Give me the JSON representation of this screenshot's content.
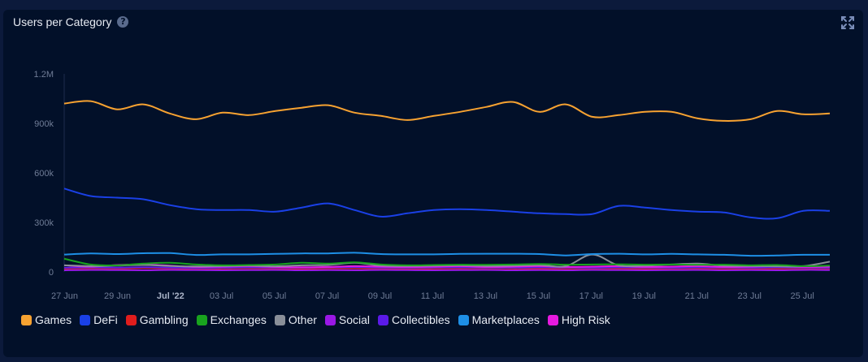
{
  "header": {
    "title": "Users per Category"
  },
  "icons": {
    "help": "question-circle-icon",
    "expand": "expand-icon"
  },
  "chart_data": {
    "type": "line",
    "title": "Users per Category",
    "xlabel": "",
    "ylabel": "",
    "ylim": [
      0,
      1200000
    ],
    "y_ticks": [
      {
        "label": "0",
        "value": 0
      },
      {
        "label": "300k",
        "value": 300000
      },
      {
        "label": "600k",
        "value": 600000
      },
      {
        "label": "900k",
        "value": 900000
      },
      {
        "label": "1.2M",
        "value": 1200000
      }
    ],
    "x_ticks": [
      {
        "label": "27 Jun",
        "index": 0,
        "bold": false
      },
      {
        "label": "29 Jun",
        "index": 2,
        "bold": false
      },
      {
        "label": "Jul '22",
        "index": 4,
        "bold": true
      },
      {
        "label": "03 Jul",
        "index": 6,
        "bold": false
      },
      {
        "label": "05 Jul",
        "index": 8,
        "bold": false
      },
      {
        "label": "07 Jul",
        "index": 10,
        "bold": false
      },
      {
        "label": "09 Jul",
        "index": 12,
        "bold": false
      },
      {
        "label": "11 Jul",
        "index": 14,
        "bold": false
      },
      {
        "label": "13 Jul",
        "index": 16,
        "bold": false
      },
      {
        "label": "15 Jul",
        "index": 18,
        "bold": false
      },
      {
        "label": "17 Jul",
        "index": 20,
        "bold": false
      },
      {
        "label": "19 Jul",
        "index": 22,
        "bold": false
      },
      {
        "label": "21 Jul",
        "index": 24,
        "bold": false
      },
      {
        "label": "23 Jul",
        "index": 26,
        "bold": false
      },
      {
        "label": "25 Jul",
        "index": 28,
        "bold": false
      }
    ],
    "x": [
      "2022-06-27",
      "2022-06-28",
      "2022-06-29",
      "2022-06-30",
      "2022-07-01",
      "2022-07-02",
      "2022-07-03",
      "2022-07-04",
      "2022-07-05",
      "2022-07-06",
      "2022-07-07",
      "2022-07-08",
      "2022-07-09",
      "2022-07-10",
      "2022-07-11",
      "2022-07-12",
      "2022-07-13",
      "2022-07-14",
      "2022-07-15",
      "2022-07-16",
      "2022-07-17",
      "2022-07-18",
      "2022-07-19",
      "2022-07-20",
      "2022-07-21",
      "2022-07-22",
      "2022-07-23",
      "2022-07-24",
      "2022-07-25",
      "2022-07-26"
    ],
    "grid": false,
    "legend_position": "bottom-left",
    "series": [
      {
        "name": "Games",
        "color": "#f7a231",
        "values": [
          1020000,
          1035000,
          985000,
          1015000,
          960000,
          925000,
          965000,
          950000,
          975000,
          995000,
          1010000,
          965000,
          945000,
          920000,
          945000,
          970000,
          1000000,
          1030000,
          970000,
          1015000,
          940000,
          950000,
          970000,
          970000,
          930000,
          915000,
          925000,
          975000,
          955000,
          960000
        ]
      },
      {
        "name": "DeFi",
        "color": "#1a40e6",
        "values": [
          505000,
          460000,
          450000,
          440000,
          405000,
          380000,
          375000,
          375000,
          365000,
          390000,
          415000,
          375000,
          335000,
          355000,
          375000,
          380000,
          375000,
          365000,
          355000,
          350000,
          350000,
          400000,
          390000,
          375000,
          365000,
          360000,
          330000,
          325000,
          370000,
          370000
        ]
      },
      {
        "name": "Gambling",
        "color": "#e01d1d",
        "values": [
          20000,
          22000,
          20000,
          23000,
          21000,
          18000,
          20000,
          22000,
          20000,
          19000,
          21000,
          22000,
          20000,
          18000,
          20000,
          21000,
          22000,
          20000,
          19000,
          20000,
          21000,
          20000,
          19000,
          20000,
          21000,
          20000,
          19000,
          20000,
          21000,
          20000
        ]
      },
      {
        "name": "Exchanges",
        "color": "#19a31e",
        "values": [
          80000,
          45000,
          40000,
          50000,
          55000,
          45000,
          40000,
          42000,
          45000,
          55000,
          50000,
          58000,
          45000,
          40000,
          42000,
          44000,
          43000,
          45000,
          48000,
          44000,
          45000,
          46000,
          44000,
          45000,
          43000,
          44000,
          40000,
          42000,
          35000,
          38000
        ]
      },
      {
        "name": "Other",
        "color": "#8a8f99",
        "values": [
          40000,
          35000,
          38000,
          42000,
          36000,
          33000,
          35000,
          38000,
          34000,
          40000,
          42000,
          55000,
          38000,
          36000,
          38000,
          40000,
          36000,
          38000,
          42000,
          35000,
          105000,
          40000,
          38000,
          45000,
          50000,
          38000,
          36000,
          34000,
          35000,
          62000
        ]
      },
      {
        "name": "Social",
        "color": "#9a18e6",
        "values": [
          10000,
          12000,
          11000,
          10000,
          12000,
          11000,
          10000,
          11000,
          12000,
          10000,
          11000,
          10000,
          12000,
          11000,
          10000,
          11000,
          12000,
          10000,
          11000,
          10000,
          12000,
          11000,
          10000,
          11000,
          12000,
          10000,
          11000,
          10000,
          12000,
          11000
        ]
      },
      {
        "name": "Collectibles",
        "color": "#5b1ae8",
        "values": [
          25000,
          27000,
          26000,
          28000,
          26000,
          24000,
          25000,
          27000,
          26000,
          25000,
          27000,
          28000,
          26000,
          25000,
          26000,
          27000,
          26000,
          25000,
          27000,
          26000,
          25000,
          27000,
          26000,
          25000,
          27000,
          26000,
          25000,
          27000,
          26000,
          25000
        ]
      },
      {
        "name": "Marketplaces",
        "color": "#1e8fe6",
        "values": [
          105000,
          112000,
          108000,
          113000,
          114000,
          103000,
          106000,
          106000,
          109000,
          112000,
          112000,
          116000,
          108000,
          106000,
          106000,
          109000,
          110000,
          110000,
          108000,
          100000,
          108000,
          110000,
          106000,
          109000,
          106000,
          104000,
          98000,
          100000,
          104000,
          104000
        ]
      },
      {
        "name": "High Risk",
        "color": "#e61ae0",
        "values": [
          40000,
          32000,
          42000,
          45000,
          38000,
          30000,
          32000,
          35000,
          30000,
          28000,
          30000,
          35000,
          32000,
          30000,
          32000,
          35000,
          30000,
          32000,
          35000,
          30000,
          32000,
          35000,
          30000,
          32000,
          35000,
          30000,
          32000,
          35000,
          30000,
          32000
        ]
      }
    ]
  }
}
